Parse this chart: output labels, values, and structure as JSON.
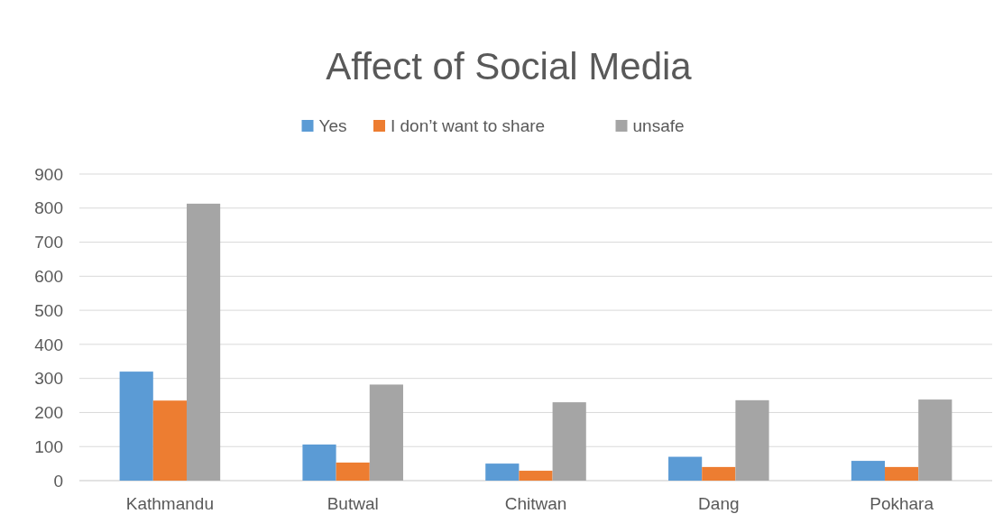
{
  "chart_data": {
    "type": "bar",
    "title": "Affect of Social Media",
    "categories": [
      "Kathmandu",
      "Butwal",
      "Chitwan",
      "Dang",
      "Pokhara"
    ],
    "series": [
      {
        "name": "Yes",
        "color": "#5b9bd5",
        "values": [
          320,
          106,
          50,
          70,
          58
        ]
      },
      {
        "name": "I don’t want to share",
        "color": "#ed7d31",
        "values": [
          235,
          53,
          29,
          40,
          40
        ]
      },
      {
        "name": "unsafe",
        "color": "#a5a5a5",
        "values": [
          813,
          282,
          230,
          236,
          238
        ]
      }
    ],
    "ylim": [
      0,
      900
    ],
    "yticks": [
      0,
      100,
      200,
      300,
      400,
      500,
      600,
      700,
      800,
      900
    ],
    "grid": "y",
    "legend": "top"
  }
}
